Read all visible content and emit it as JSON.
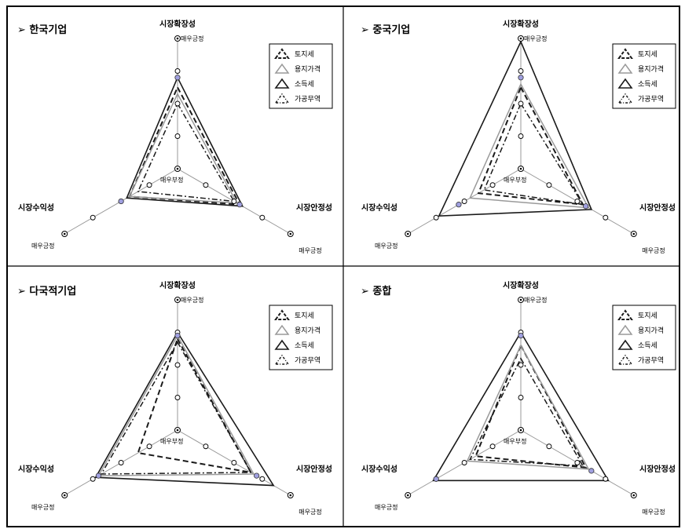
{
  "chart_data": [
    {
      "type": "radar",
      "title": "➢ 한국기업",
      "axes": [
        {
          "name": "시장확장성",
          "label_top": "매우긍정",
          "label_center": "매우부정"
        },
        {
          "name": "시장안정성",
          "label_outer": "매우긍정"
        },
        {
          "name": "시장수익성",
          "label_outer": "매우긍정"
        }
      ],
      "scale": {
        "min": 1,
        "max": 5
      },
      "series": [
        {
          "name": "토지세",
          "values": [
            3.5,
            3.2,
            2.7
          ]
        },
        {
          "name": "용지가격",
          "values": [
            3.3,
            3.1,
            2.7
          ]
        },
        {
          "name": "소득세",
          "values": [
            3.8,
            3.3,
            2.8
          ]
        },
        {
          "name": "가공무역",
          "values": [
            3.0,
            3.0,
            2.4
          ]
        }
      ],
      "highlight_values": [
        3.8,
        3.2,
        3.0
      ]
    },
    {
      "type": "radar",
      "title": "➢ 중국기업",
      "axes": [
        {
          "name": "시장확장성",
          "label_top": "매우긍정",
          "label_center": "매우부정"
        },
        {
          "name": "시장안정성",
          "label_outer": "매우긍정"
        },
        {
          "name": "시장수익성",
          "label_outer": "매우긍정"
        }
      ],
      "scale": {
        "min": 1,
        "max": 5
      },
      "series": [
        {
          "name": "토지세",
          "values": [
            3.5,
            3.2,
            2.5
          ]
        },
        {
          "name": "용지가격",
          "values": [
            3.6,
            3.4,
            2.8
          ]
        },
        {
          "name": "소득세",
          "values": [
            4.9,
            3.5,
            3.9
          ]
        },
        {
          "name": "가공무역",
          "values": [
            3.0,
            3.2,
            2.3
          ]
        }
      ],
      "highlight_values": [
        3.8,
        3.3,
        3.2
      ]
    },
    {
      "type": "radar",
      "title": "➢ 다국적기업",
      "axes": [
        {
          "name": "시장확장성",
          "label_top": "매우긍정",
          "label_center": "매우부정"
        },
        {
          "name": "시장안정성",
          "label_outer": "매우긍정"
        },
        {
          "name": "시장수익성",
          "label_outer": "매우긍정"
        }
      ],
      "scale": {
        "min": 1,
        "max": 5
      },
      "series": [
        {
          "name": "토지세",
          "values": [
            3.8,
            3.6,
            2.4
          ]
        },
        {
          "name": "용지가격",
          "values": [
            3.9,
            3.7,
            3.8
          ]
        },
        {
          "name": "소득세",
          "values": [
            4.0,
            4.4,
            3.9
          ]
        },
        {
          "name": "가공무역",
          "values": [
            3.7,
            3.6,
            3.7
          ]
        }
      ],
      "highlight_values": [
        3.9,
        3.8,
        3.8
      ]
    },
    {
      "type": "radar",
      "title": "➢ 종합",
      "axes": [
        {
          "name": "시장확장성",
          "label_top": "매우긍정",
          "label_center": "매우부정"
        },
        {
          "name": "시장안정성",
          "label_outer": "매우긍정"
        },
        {
          "name": "시장수익성",
          "label_outer": "매우긍정"
        }
      ],
      "scale": {
        "min": 1,
        "max": 5
      },
      "series": [
        {
          "name": "토지세",
          "values": [
            3.6,
            3.3,
            2.6
          ]
        },
        {
          "name": "용지가격",
          "values": [
            3.6,
            3.4,
            2.9
          ]
        },
        {
          "name": "소득세",
          "values": [
            4.0,
            4.1,
            4.1
          ]
        },
        {
          "name": "가공무역",
          "values": [
            3.2,
            3.2,
            2.8
          ]
        }
      ],
      "highlight_values": [
        3.9,
        3.5,
        4.0
      ]
    }
  ],
  "legend": [
    {
      "name": "토지세",
      "style": "dashed"
    },
    {
      "name": "용지가격",
      "style": "thin"
    },
    {
      "name": "소득세",
      "style": "solid"
    },
    {
      "name": "가공무역",
      "style": "dashdot"
    }
  ],
  "colors": {
    "border": "#000000",
    "axis": "#999999",
    "series_dark": "#1a1a1a",
    "series_light": "#9a9a9a",
    "marker_fill": "#a0a0e0"
  }
}
